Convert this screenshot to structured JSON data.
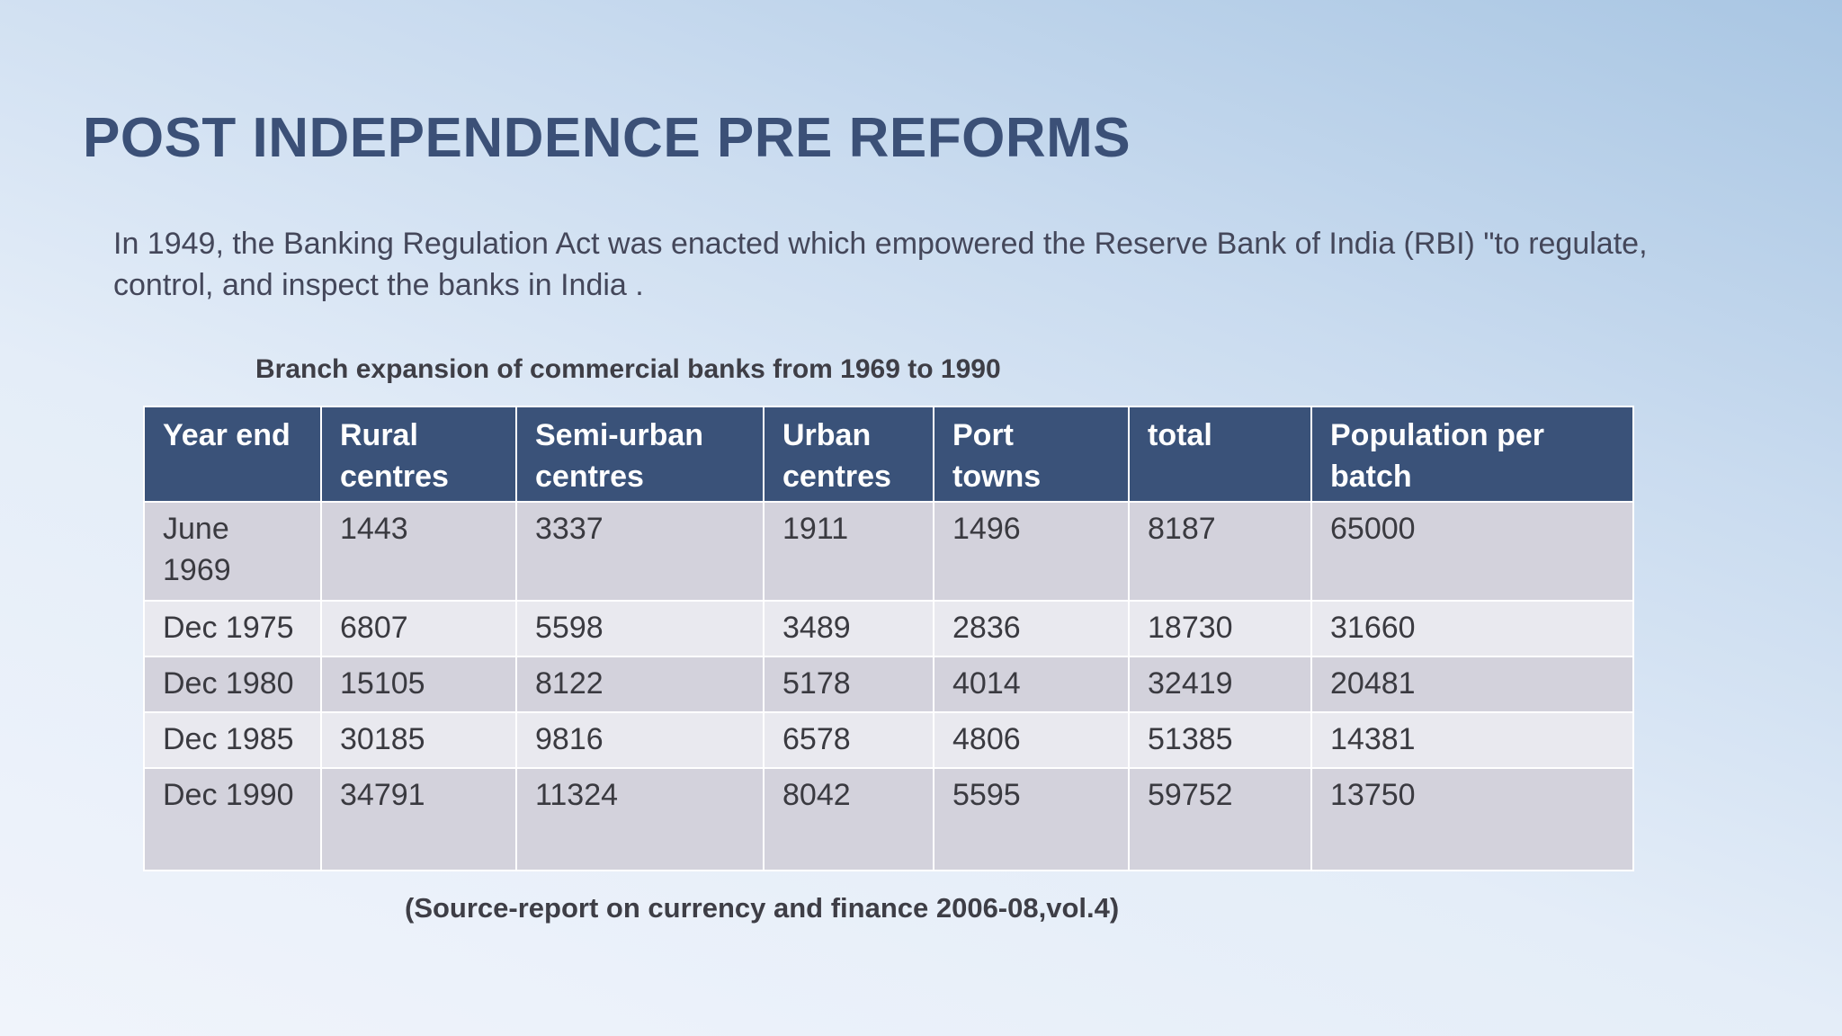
{
  "slide": {
    "title": "POST INDEPENDENCE PRE REFORMS",
    "intro": "In 1949, the Banking Regulation Act was enacted which empowered the Reserve Bank of India (RBI) \"to regulate, control, and inspect the banks in India .",
    "caption": "Branch expansion of commercial banks from 1969 to 1990",
    "source": "(Source-report on currency and finance 2006-08,vol.4)"
  },
  "table": {
    "headers": [
      "Year end",
      "Rural centres",
      "Semi-urban centres",
      "Urban centres",
      "Port towns",
      "total",
      "Population per batch"
    ],
    "rows": [
      [
        "June 1969",
        "1443",
        "3337",
        "1911",
        "1496",
        "8187",
        "65000"
      ],
      [
        "Dec 1975",
        "6807",
        "5598",
        "3489",
        "2836",
        "18730",
        "31660"
      ],
      [
        "Dec 1980",
        "15105",
        "8122",
        "5178",
        "4014",
        "32419",
        "20481"
      ],
      [
        "Dec 1985",
        "30185",
        "9816",
        "6578",
        "4806",
        "51385",
        "14381"
      ],
      [
        "Dec 1990",
        "34791",
        "11324",
        "8042",
        "5595",
        "59752",
        "13750"
      ]
    ]
  }
}
